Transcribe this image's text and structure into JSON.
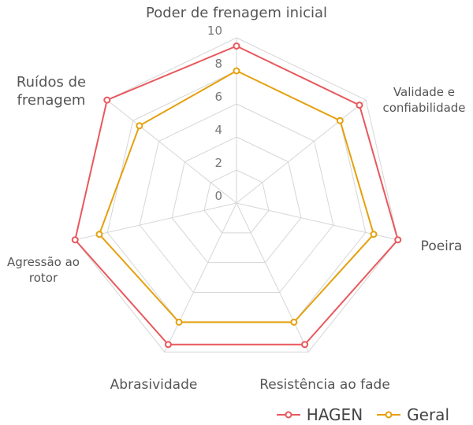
{
  "chart_data": {
    "type": "radar",
    "title": "",
    "axes": [
      "Poder de frenagem inicial",
      "Validade e confiabilidade",
      "Poeira",
      "Resistência ao fade",
      "Abrasividade",
      "Agressão ao rotor",
      "Ruídos de frenagem"
    ],
    "axis_label_lines": [
      [
        "Poder de frenagem inicial"
      ],
      [
        "Validade e",
        "confiabilidade"
      ],
      [
        "Poeira"
      ],
      [
        "Resistência ao fade"
      ],
      [
        "Abrasividade"
      ],
      [
        "Agressão ao",
        "rotor"
      ],
      [
        "Ruídos de",
        "frenagem"
      ]
    ],
    "rlim": [
      0,
      10
    ],
    "ticks": [
      "0",
      "2",
      "4",
      "6",
      "8",
      "10"
    ],
    "grid": true,
    "legend_position": "bottom-right",
    "series": [
      {
        "name": "HAGEN",
        "color": "#e8585c",
        "values": [
          9.5,
          9.5,
          10,
          9.5,
          9.5,
          10,
          10
        ]
      },
      {
        "name": "Geral",
        "color": "#e5a00d",
        "values": [
          8,
          8,
          8.5,
          8,
          8,
          8.5,
          7.5
        ]
      }
    ]
  }
}
